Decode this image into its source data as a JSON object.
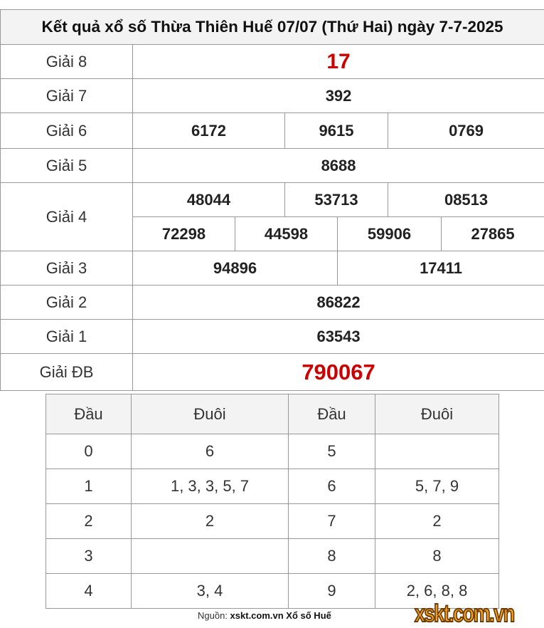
{
  "title": "Kết quả xổ số Thừa Thiên Huế 07/07 (Thứ Hai) ngày 7-7-2025",
  "prizes": {
    "g8": {
      "label": "Giải 8",
      "values": [
        "17"
      ]
    },
    "g7": {
      "label": "Giải 7",
      "values": [
        "392"
      ]
    },
    "g6": {
      "label": "Giải 6",
      "values": [
        "6172",
        "9615",
        "0769"
      ]
    },
    "g5": {
      "label": "Giải 5",
      "values": [
        "8688"
      ]
    },
    "g4": {
      "label": "Giải 4",
      "values": [
        "48044",
        "53713",
        "08513",
        "72298",
        "44598",
        "59906",
        "27865"
      ]
    },
    "g3": {
      "label": "Giải 3",
      "values": [
        "94896",
        "17411"
      ]
    },
    "g2": {
      "label": "Giải 2",
      "values": [
        "86822"
      ]
    },
    "g1": {
      "label": "Giải 1",
      "values": [
        "63543"
      ]
    },
    "db": {
      "label": "Giải ĐB",
      "values": [
        "790067"
      ]
    }
  },
  "loto": {
    "headers": [
      "Đầu",
      "Đuôi",
      "Đầu",
      "Đuôi"
    ],
    "rows": [
      [
        "0",
        "6",
        "5",
        ""
      ],
      [
        "1",
        "1, 3, 3, 5, 7",
        "6",
        "5, 7, 9"
      ],
      [
        "2",
        "2",
        "7",
        "2"
      ],
      [
        "3",
        "",
        "8",
        "8"
      ],
      [
        "4",
        "3, 4",
        "9",
        "2, 6, 8, 8"
      ]
    ]
  },
  "footer": {
    "source_label": "Nguồn:",
    "source_text": "xskt.com.vn Xổ số Huế",
    "logo": "xskt.com.vn"
  },
  "colors": {
    "highlight": "#cc0000",
    "logo": "#f7a41d"
  }
}
